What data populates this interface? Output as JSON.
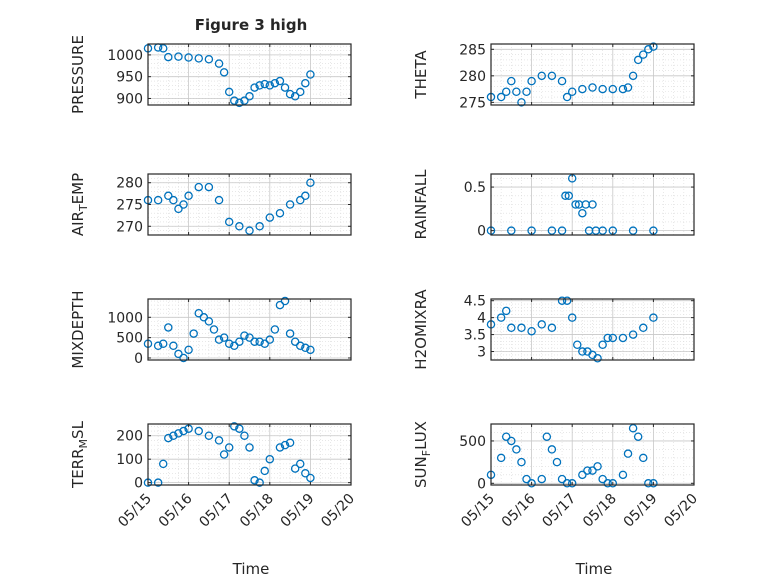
{
  "figure": {
    "title": "Figure 3 high",
    "marker_color": "#0072BD"
  },
  "chart_data": [
    {
      "type": "scatter",
      "ylabel": "PRESSURE",
      "ylim": [
        885,
        1025
      ],
      "yticks": [
        900,
        950,
        1000
      ],
      "x": [
        "05/15 00:00",
        "05/15 06:00",
        "05/15 09:00",
        "05/15 12:00",
        "05/15 18:00",
        "05/16 00:00",
        "05/16 06:00",
        "05/16 12:00",
        "05/16 18:00",
        "05/16 21:00",
        "05/17 00:00",
        "05/17 03:00",
        "05/17 06:00",
        "05/17 09:00",
        "05/17 12:00",
        "05/17 15:00",
        "05/17 18:00",
        "05/17 21:00",
        "05/18 00:00",
        "05/18 03:00",
        "05/18 06:00",
        "05/18 09:00",
        "05/18 12:00",
        "05/18 15:00",
        "05/18 18:00",
        "05/18 21:00",
        "05/19 00:00"
      ],
      "y": [
        1015,
        1017,
        1015,
        995,
        996,
        994,
        992,
        990,
        980,
        960,
        915,
        895,
        890,
        895,
        905,
        925,
        930,
        933,
        930,
        935,
        940,
        925,
        910,
        905,
        915,
        935,
        955
      ]
    },
    {
      "type": "scatter",
      "ylabel": "THETA",
      "ylim": [
        274.5,
        286
      ],
      "yticks": [
        275,
        280,
        285
      ],
      "x": [
        "05/15 00:00",
        "05/15 06:00",
        "05/15 09:00",
        "05/15 12:00",
        "05/15 15:00",
        "05/15 18:00",
        "05/15 21:00",
        "05/16 00:00",
        "05/16 06:00",
        "05/16 12:00",
        "05/16 18:00",
        "05/16 21:00",
        "05/17 00:00",
        "05/17 06:00",
        "05/17 12:00",
        "05/17 18:00",
        "05/18 00:00",
        "05/18 06:00",
        "05/18 09:00",
        "05/18 12:00",
        "05/18 15:00",
        "05/18 18:00",
        "05/18 21:00",
        "05/19 00:00"
      ],
      "y": [
        276,
        276,
        277,
        279,
        277,
        275,
        277,
        279,
        280,
        280,
        279,
        276,
        277,
        277.5,
        277.8,
        277.5,
        277.5,
        277.5,
        277.8,
        280,
        283,
        284,
        285,
        285.5
      ]
    },
    {
      "type": "scatter",
      "ylabel": "AIR_TEMP",
      "ylim": [
        268,
        282
      ],
      "yticks": [
        270,
        275,
        280
      ],
      "x": [
        "05/15 00:00",
        "05/15 06:00",
        "05/15 12:00",
        "05/15 15:00",
        "05/15 18:00",
        "05/15 21:00",
        "05/16 00:00",
        "05/16 06:00",
        "05/16 12:00",
        "05/16 18:00",
        "05/17 00:00",
        "05/17 06:00",
        "05/17 12:00",
        "05/17 18:00",
        "05/18 00:00",
        "05/18 06:00",
        "05/18 12:00",
        "05/18 18:00",
        "05/18 21:00",
        "05/19 00:00"
      ],
      "y": [
        276,
        276,
        277,
        276,
        274,
        275,
        277,
        279,
        279,
        276,
        271,
        270,
        269,
        270,
        272,
        273,
        275,
        276,
        277,
        280
      ]
    },
    {
      "type": "scatter",
      "ylabel": "RAINFALL",
      "ylim": [
        -0.05,
        0.65
      ],
      "yticks": [
        0,
        0.5
      ],
      "x": [
        "05/15 00:00",
        "05/15 12:00",
        "05/16 00:00",
        "05/16 12:00",
        "05/16 18:00",
        "05/16 20:00",
        "05/16 22:00",
        "05/17 00:00",
        "05/17 02:00",
        "05/17 04:00",
        "05/17 06:00",
        "05/17 08:00",
        "05/17 10:00",
        "05/17 12:00",
        "05/17 14:00",
        "05/17 18:00",
        "05/18 00:00",
        "05/18 12:00",
        "05/19 00:00"
      ],
      "y": [
        0,
        0,
        0,
        0,
        0,
        0.4,
        0.4,
        0.6,
        0.3,
        0.3,
        0.2,
        0.3,
        0,
        0.3,
        0,
        0,
        0,
        0,
        0
      ]
    },
    {
      "type": "scatter",
      "ylabel": "MIXDEPTH",
      "ylim": [
        -50,
        1450
      ],
      "yticks": [
        0,
        500,
        1000
      ],
      "x": [
        "05/15 00:00",
        "05/15 06:00",
        "05/15 09:00",
        "05/15 12:00",
        "05/15 15:00",
        "05/15 18:00",
        "05/15 21:00",
        "05/16 00:00",
        "05/16 03:00",
        "05/16 06:00",
        "05/16 09:00",
        "05/16 12:00",
        "05/16 15:00",
        "05/16 18:00",
        "05/16 21:00",
        "05/17 00:00",
        "05/17 03:00",
        "05/17 06:00",
        "05/17 09:00",
        "05/17 12:00",
        "05/17 15:00",
        "05/17 18:00",
        "05/17 21:00",
        "05/18 00:00",
        "05/18 03:00",
        "05/18 06:00",
        "05/18 09:00",
        "05/18 12:00",
        "05/18 15:00",
        "05/18 18:00",
        "05/18 21:00",
        "05/19 00:00"
      ],
      "y": [
        350,
        300,
        350,
        750,
        300,
        100,
        0,
        200,
        600,
        1100,
        1000,
        900,
        700,
        450,
        500,
        350,
        300,
        400,
        550,
        500,
        400,
        400,
        350,
        450,
        700,
        1300,
        1400,
        600,
        400,
        300,
        250,
        200
      ]
    },
    {
      "type": "scatter",
      "ylabel": "H2OMIXRA",
      "ylim": [
        2.75,
        4.55
      ],
      "yticks": [
        3,
        3.5,
        4,
        4.5
      ],
      "x": [
        "05/15 00:00",
        "05/15 06:00",
        "05/15 09:00",
        "05/15 12:00",
        "05/15 18:00",
        "05/16 00:00",
        "05/16 06:00",
        "05/16 12:00",
        "05/16 18:00",
        "05/16 21:00",
        "05/17 00:00",
        "05/17 03:00",
        "05/17 06:00",
        "05/17 09:00",
        "05/17 12:00",
        "05/17 15:00",
        "05/17 18:00",
        "05/17 21:00",
        "05/18 00:00",
        "05/18 06:00",
        "05/18 12:00",
        "05/18 18:00",
        "05/19 00:00"
      ],
      "y": [
        3.8,
        4.0,
        4.2,
        3.7,
        3.7,
        3.6,
        3.8,
        3.7,
        4.5,
        4.5,
        4.0,
        3.2,
        3.0,
        3.0,
        2.9,
        2.8,
        3.2,
        3.4,
        3.4,
        3.4,
        3.5,
        3.7,
        4.0
      ]
    },
    {
      "type": "scatter",
      "ylabel": "TERR_MSL",
      "ylim": [
        -10,
        250
      ],
      "yticks": [
        0,
        100,
        200
      ],
      "x": [
        "05/15 00:00",
        "05/15 06:00",
        "05/15 09:00",
        "05/15 12:00",
        "05/15 15:00",
        "05/15 18:00",
        "05/15 21:00",
        "05/16 00:00",
        "05/16 06:00",
        "05/16 12:00",
        "05/16 18:00",
        "05/16 21:00",
        "05/17 00:00",
        "05/17 03:00",
        "05/17 06:00",
        "05/17 09:00",
        "05/17 12:00",
        "05/17 15:00",
        "05/17 18:00",
        "05/17 21:00",
        "05/18 00:00",
        "05/18 06:00",
        "05/18 09:00",
        "05/18 12:00",
        "05/18 15:00",
        "05/18 18:00",
        "05/18 21:00",
        "05/19 00:00"
      ],
      "y": [
        0,
        0,
        80,
        190,
        200,
        210,
        220,
        230,
        220,
        200,
        180,
        120,
        150,
        240,
        230,
        200,
        150,
        10,
        0,
        50,
        100,
        150,
        160,
        170,
        60,
        80,
        40,
        20
      ]
    },
    {
      "type": "scatter",
      "ylabel": "SUN_FLUX",
      "ylim": [
        -20,
        700
      ],
      "yticks": [
        0,
        500
      ],
      "x": [
        "05/15 00:00",
        "05/15 06:00",
        "05/15 09:00",
        "05/15 12:00",
        "05/15 15:00",
        "05/15 18:00",
        "05/15 21:00",
        "05/16 00:00",
        "05/16 06:00",
        "05/16 09:00",
        "05/16 12:00",
        "05/16 15:00",
        "05/16 18:00",
        "05/16 21:00",
        "05/17 00:00",
        "05/17 06:00",
        "05/17 09:00",
        "05/17 12:00",
        "05/17 15:00",
        "05/17 18:00",
        "05/17 21:00",
        "05/18 00:00",
        "05/18 06:00",
        "05/18 09:00",
        "05/18 12:00",
        "05/18 15:00",
        "05/18 18:00",
        "05/18 21:00",
        "05/19 00:00"
      ],
      "y": [
        100,
        300,
        550,
        500,
        400,
        250,
        50,
        0,
        50,
        550,
        400,
        250,
        50,
        0,
        0,
        100,
        150,
        150,
        200,
        50,
        0,
        0,
        100,
        350,
        650,
        550,
        300,
        0,
        0
      ]
    }
  ],
  "x_axis": {
    "xlim": [
      "05/15 00:00",
      "05/20 00:00"
    ],
    "tick_labels": [
      "05/15",
      "05/16",
      "05/17",
      "05/18",
      "05/19",
      "05/20"
    ],
    "xlabel": "Time"
  }
}
